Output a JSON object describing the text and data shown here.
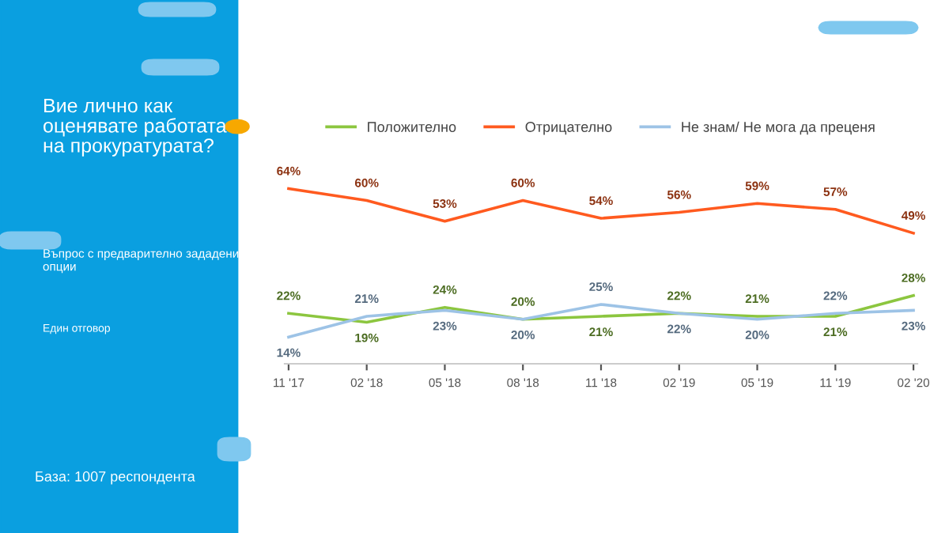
{
  "chart_data": {
    "type": "line",
    "title": "Вие лично как оценявате работата на прокуратурата?",
    "annotations": [
      "Въпрос с предварително зададени опции",
      "Един отговор",
      "База: 1007 респондента"
    ],
    "categories": [
      "11 '17",
      "02 '18",
      "05 '18",
      "08 '18",
      "11 '18",
      "02 '19",
      "05 '19",
      "11 '19",
      "02 '20"
    ],
    "series": [
      {
        "name": "Положително",
        "color": "#8cc63f",
        "values": [
          22,
          19,
          24,
          20,
          21,
          22,
          21,
          21,
          28
        ],
        "value_labels": [
          "22%",
          "19%",
          "24%",
          "20%",
          "21%",
          "22%",
          "21%",
          "21%",
          "28%"
        ]
      },
      {
        "name": "Отрицателно",
        "color": "#ff5a1f",
        "values": [
          64,
          60,
          53,
          60,
          54,
          56,
          59,
          57,
          49
        ],
        "value_labels": [
          "64%",
          "60%",
          "53%",
          "60%",
          "54%",
          "56%",
          "59%",
          "57%",
          "49%"
        ]
      },
      {
        "name": "Не знам/ Не мога да преценя",
        "color": "#9dc3e6",
        "values": [
          14,
          21,
          23,
          20,
          25,
          22,
          20,
          22,
          23
        ],
        "value_labels": [
          "14%",
          "21%",
          "23%",
          "20%",
          "25%",
          "22%",
          "20%",
          "22%",
          "23%"
        ]
      }
    ],
    "legend": "top",
    "marker": "none",
    "line_style": "solid"
  }
}
